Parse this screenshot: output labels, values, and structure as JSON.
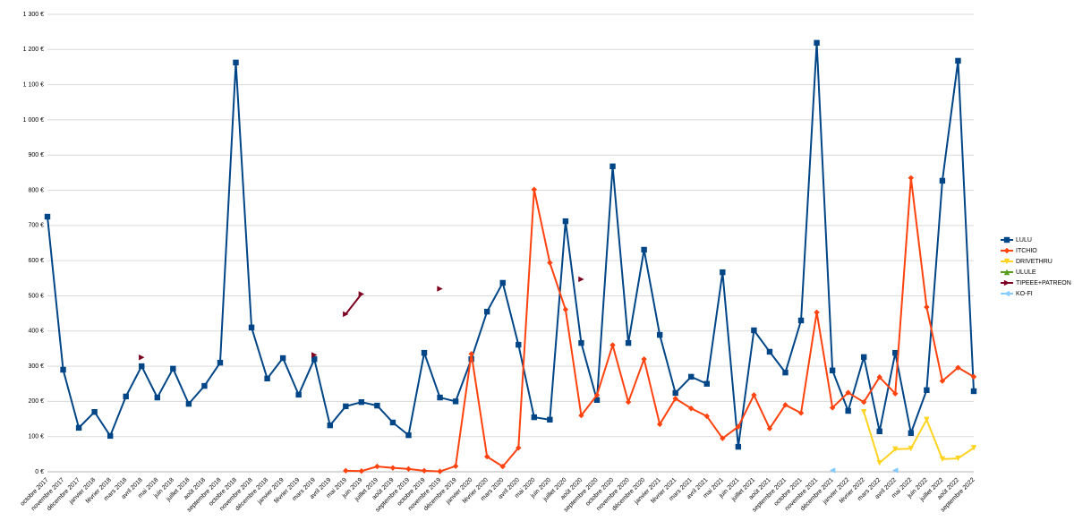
{
  "chart_data": {
    "type": "line",
    "categories": [
      "octobre 2017",
      "novembre 2017",
      "décembre 2017",
      "janvier 2018",
      "février 2018",
      "mars 2018",
      "avril 2018",
      "mai 2018",
      "juin 2018",
      "juillet 2018",
      "août 2018",
      "septembre 2018",
      "octobre 2018",
      "novembre 2018",
      "décembre 2018",
      "janvier 2019",
      "février 2019",
      "mars 2019",
      "avril 2019",
      "mai 2019",
      "juin 2019",
      "juillet 2019",
      "août 2019",
      "septembre 2019",
      "octobre 2019",
      "novembre 2019",
      "décembre 2019",
      "janvier 2020",
      "février 2020",
      "mars 2020",
      "avril 2020",
      "mai 2020",
      "juin 2020",
      "juillet 2020",
      "août 2020",
      "septembre 2020",
      "octobre 2020",
      "novembre 2020",
      "décembre 2020",
      "janvier 2021",
      "février 2021",
      "mars 2021",
      "avril 2021",
      "mai 2021",
      "juin 2021",
      "juillet 2021",
      "août 2021",
      "septembre 2021",
      "octobre 2021",
      "novembre 2021",
      "décembre 2021",
      "janvier 2022",
      "février 2022",
      "mars 2022",
      "avril 2022",
      "mai 2022",
      "juin 2022",
      "juillet 2022",
      "août 2022",
      "septembre 2022"
    ],
    "series": [
      {
        "name": "LULU",
        "color": "#004586",
        "marker": "square",
        "values": [
          725,
          290,
          125,
          170,
          102,
          214,
          300,
          211,
          293,
          193,
          244,
          310,
          1163,
          410,
          265,
          323,
          219,
          320,
          132,
          186,
          198,
          188,
          140,
          104,
          338,
          211,
          200,
          320,
          455,
          537,
          361,
          155,
          148,
          712,
          366,
          204,
          868,
          366,
          631,
          389,
          224,
          270,
          250,
          567,
          71,
          402,
          341,
          282,
          430,
          1219,
          288,
          173,
          326,
          115,
          338,
          110,
          232,
          827,
          1168,
          229
        ]
      },
      {
        "name": "ITCHIO",
        "color": "#ff420e",
        "marker": "diamond",
        "values": [
          null,
          null,
          null,
          null,
          null,
          null,
          null,
          null,
          null,
          null,
          null,
          null,
          null,
          null,
          null,
          null,
          null,
          null,
          null,
          3,
          2,
          15,
          11,
          8,
          3,
          1,
          16,
          335,
          43,
          15,
          68,
          802,
          594,
          461,
          160,
          218,
          360,
          198,
          320,
          135,
          208,
          180,
          158,
          95,
          128,
          218,
          123,
          190,
          167,
          453,
          182,
          225,
          198,
          269,
          222,
          835,
          468,
          258,
          296,
          270
        ]
      },
      {
        "name": "DRIVETHRU",
        "color": "#ffd320",
        "marker": "triangle-down",
        "values": [
          null,
          null,
          null,
          null,
          null,
          null,
          null,
          null,
          null,
          null,
          null,
          null,
          null,
          null,
          null,
          null,
          null,
          null,
          null,
          null,
          null,
          null,
          null,
          null,
          null,
          null,
          null,
          null,
          null,
          null,
          null,
          null,
          null,
          null,
          null,
          null,
          null,
          null,
          null,
          null,
          null,
          null,
          null,
          null,
          null,
          null,
          null,
          null,
          null,
          null,
          null,
          null,
          170,
          25,
          64,
          66,
          148,
          36,
          38,
          68
        ]
      },
      {
        "name": "ULULE",
        "color": "#579d1c",
        "marker": "triangle-up",
        "values": [
          null,
          null,
          null,
          null,
          null,
          null,
          null,
          null,
          null,
          null,
          null,
          null,
          null,
          null,
          null,
          null,
          null,
          null,
          null,
          null,
          null,
          null,
          null,
          null,
          null,
          null,
          null,
          null,
          null,
          null,
          null,
          null,
          null,
          null,
          null,
          null,
          null,
          null,
          null,
          null,
          null,
          null,
          null,
          null,
          null,
          null,
          null,
          null,
          null,
          null,
          null,
          null,
          null,
          null,
          null,
          null,
          null,
          null,
          null,
          null
        ]
      },
      {
        "name": "TIPEEE+PATREON",
        "color": "#7e0021",
        "marker": "triangle-right",
        "values": [
          null,
          null,
          null,
          null,
          null,
          null,
          325,
          null,
          null,
          null,
          null,
          null,
          null,
          null,
          null,
          null,
          null,
          332,
          null,
          448,
          505,
          null,
          null,
          null,
          null,
          520,
          null,
          null,
          null,
          null,
          null,
          null,
          null,
          null,
          547,
          null,
          null,
          null,
          null,
          null,
          null,
          null,
          null,
          null,
          null,
          null,
          null,
          null,
          null,
          null,
          null,
          null,
          null,
          null,
          null,
          null,
          null,
          null,
          null,
          null
        ]
      },
      {
        "name": "KO-FI",
        "color": "#83caff",
        "marker": "triangle-left",
        "values": [
          null,
          null,
          null,
          null,
          null,
          null,
          null,
          null,
          null,
          null,
          null,
          null,
          null,
          null,
          null,
          null,
          null,
          null,
          null,
          null,
          null,
          null,
          null,
          null,
          null,
          null,
          null,
          null,
          null,
          null,
          null,
          null,
          null,
          null,
          null,
          null,
          null,
          null,
          null,
          null,
          null,
          null,
          null,
          null,
          null,
          null,
          null,
          null,
          null,
          null,
          4,
          null,
          null,
          null,
          4,
          null,
          null,
          null,
          null,
          null
        ]
      }
    ],
    "ylim": [
      0,
      1300
    ],
    "yticks": [
      {
        "value": 0,
        "label": "0 €"
      },
      {
        "value": 100,
        "label": "100 €"
      },
      {
        "value": 200,
        "label": "200 €"
      },
      {
        "value": 300,
        "label": "300 €"
      },
      {
        "value": 400,
        "label": "400 €"
      },
      {
        "value": 500,
        "label": "500 €"
      },
      {
        "value": 600,
        "label": "600 €"
      },
      {
        "value": 700,
        "label": "700 €"
      },
      {
        "value": 800,
        "label": "800 €"
      },
      {
        "value": 900,
        "label": "900 €"
      },
      {
        "value": 1000,
        "label": "1 000 €"
      },
      {
        "value": 1100,
        "label": "1 100 €"
      },
      {
        "value": 1200,
        "label": "1 200 €"
      },
      {
        "value": 1300,
        "label": "1 300 €"
      }
    ],
    "grid": true,
    "legend": "right"
  }
}
